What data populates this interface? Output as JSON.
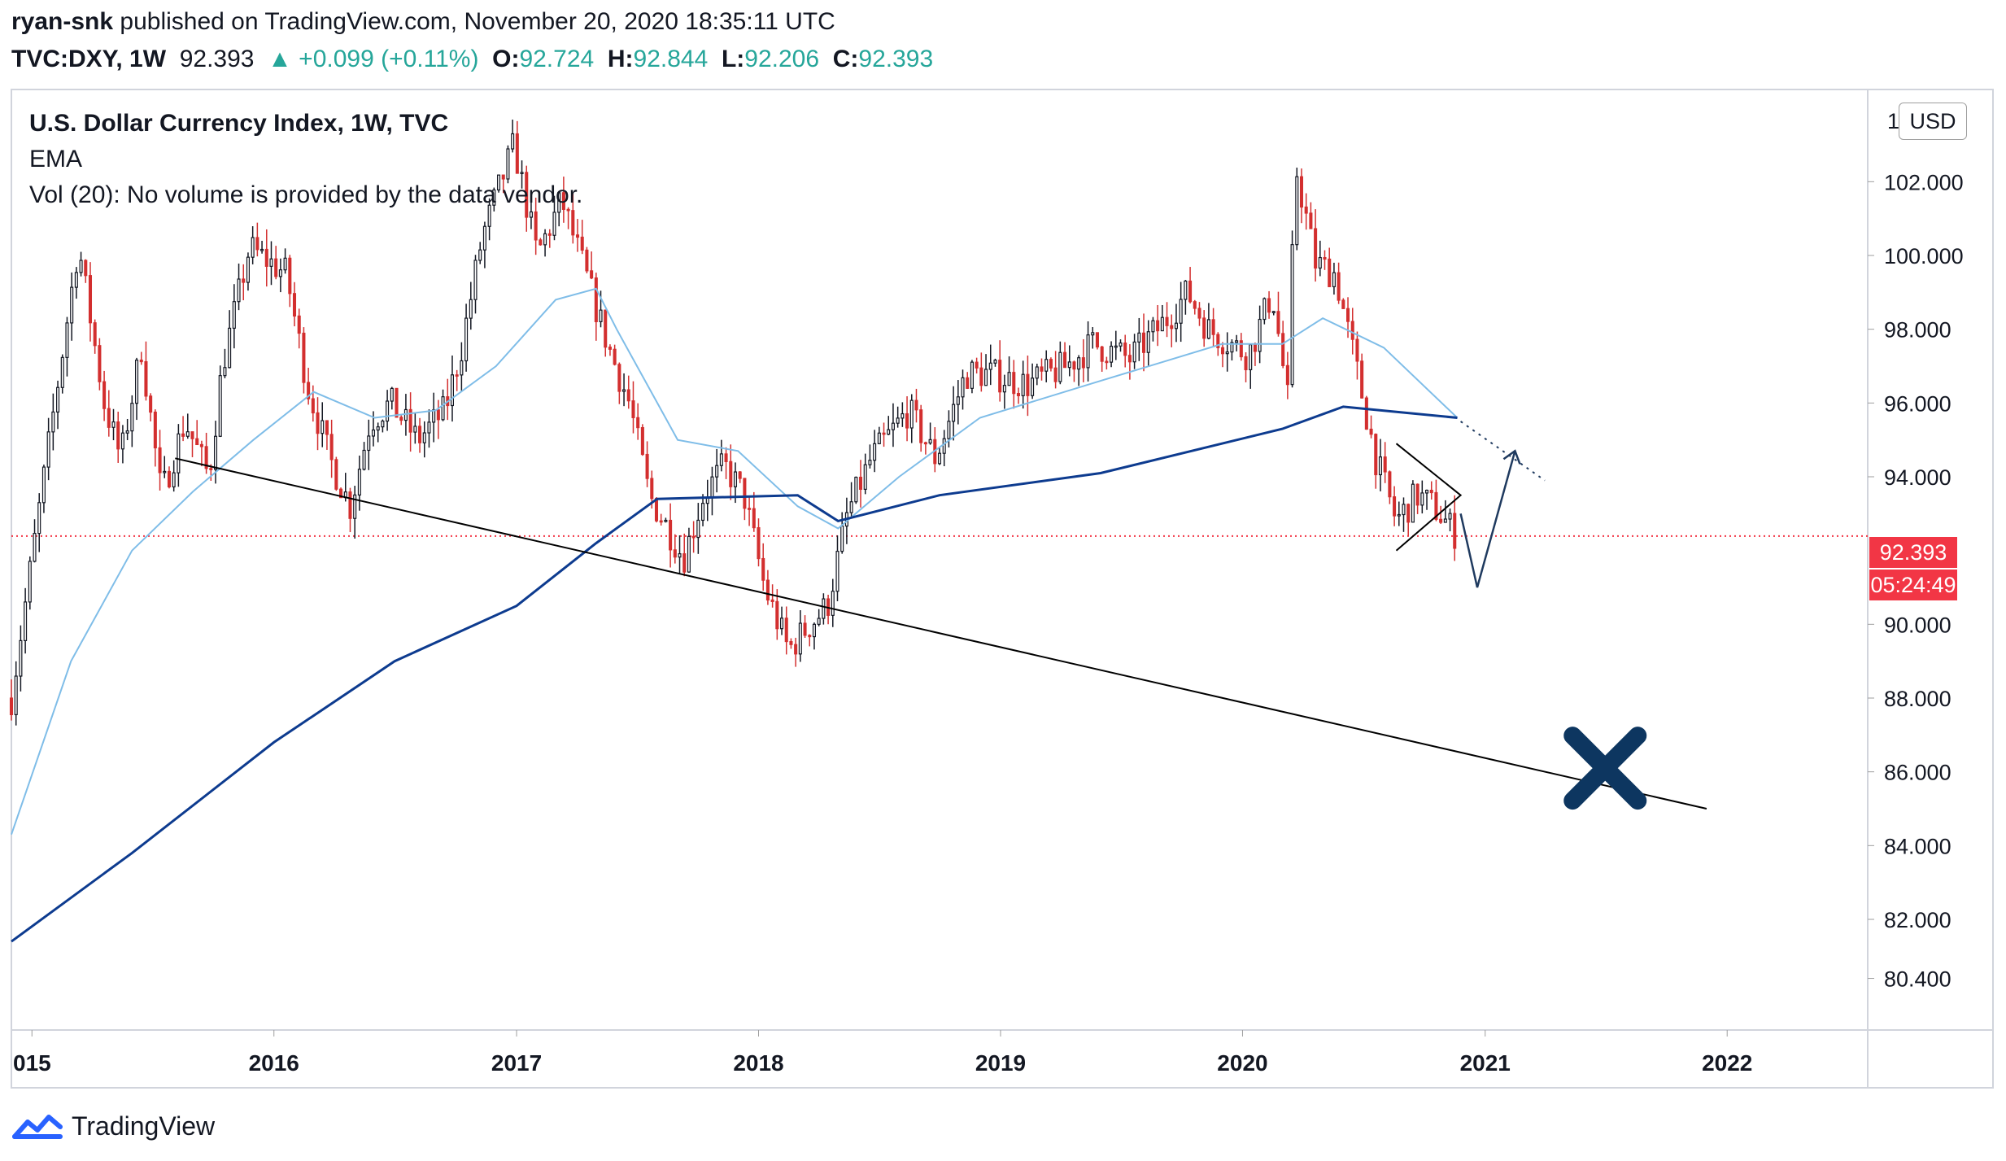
{
  "header": {
    "author": "ryan-snk",
    "published_text": " published on TradingView.com, November 20, 2020 18:35:11 UTC",
    "symbol": "TVC:DXY, 1W",
    "last": "92.393",
    "change": "▲ +0.099 (+0.11%)",
    "open_label": "O:",
    "open": "92.724",
    "high_label": "H:",
    "high": "92.844",
    "low_label": "L:",
    "low": "92.206",
    "close_label": "C:",
    "close": "92.393"
  },
  "legend": {
    "title": "U.S. Dollar Currency Index, 1W, TVC",
    "ema": "EMA",
    "vol": "Vol (20): No volume is provided by the data vendor."
  },
  "currency": "USD",
  "top_tick_partial": "1(",
  "price_label": "92.393",
  "countdown": "05:24:49",
  "brand": "TradingView",
  "colors": {
    "up": "#131722",
    "down": "#d32f2f",
    "ema_fast": "#7fbde8",
    "ema_slow": "#0d3b8f",
    "price_line": "#f23645",
    "cross": "#0d3660",
    "arrow": "#1f3a5f"
  },
  "chart_data": {
    "type": "candlestick",
    "title": "U.S. Dollar Currency Index, 1W, TVC",
    "timeframe": "1W",
    "x_axis": {
      "type": "date",
      "range": [
        "2014-12-01",
        "2022-08-01"
      ],
      "ticks": [
        "2015",
        "2016",
        "2017",
        "2018",
        "2019",
        "2020",
        "2021",
        "2022"
      ],
      "tick_dates": [
        "2015-01-01",
        "2016-01-01",
        "2017-01-01",
        "2018-01-01",
        "2019-01-01",
        "2020-01-01",
        "2021-01-01",
        "2022-01-01"
      ],
      "first_tick_label_visible": "015"
    },
    "y_axis": {
      "position": "right",
      "range": [
        79,
        104.5
      ],
      "ticks": [
        102.0,
        100.0,
        98.0,
        96.0,
        94.0,
        90.0,
        88.0,
        86.0,
        84.0,
        82.0,
        80.4
      ],
      "tick_labels": [
        "102.000",
        "100.000",
        "98.000",
        "96.000",
        "94.000",
        "90.000",
        "88.000",
        "86.000",
        "84.000",
        "82.000",
        "80.400"
      ]
    },
    "ohlc_path": [
      [
        "2014-12-01",
        88.0
      ],
      [
        "2015-01-15",
        93.5
      ],
      [
        "2015-03-12",
        100.3
      ],
      [
        "2015-04-20",
        96.0
      ],
      [
        "2015-05-15",
        94.5
      ],
      [
        "2015-06-15",
        97.5
      ],
      [
        "2015-07-15",
        93.5
      ],
      [
        "2015-08-20",
        95.5
      ],
      [
        "2015-09-25",
        94.0
      ],
      [
        "2015-10-15",
        97.0
      ],
      [
        "2015-11-25",
        100.2
      ],
      [
        "2016-01-20",
        99.5
      ],
      [
        "2016-02-20",
        96.5
      ],
      [
        "2016-03-25",
        94.5
      ],
      [
        "2016-04-25",
        93.2
      ],
      [
        "2016-05-25",
        95.5
      ],
      [
        "2016-06-25",
        96.0
      ],
      [
        "2016-08-05",
        95.0
      ],
      [
        "2016-09-15",
        95.8
      ],
      [
        "2016-10-10",
        97.5
      ],
      [
        "2016-11-10",
        100.5
      ],
      [
        "2016-12-28",
        103.0
      ],
      [
        "2017-02-01",
        100.0
      ],
      [
        "2017-03-10",
        101.5
      ],
      [
        "2017-04-15",
        99.5
      ],
      [
        "2017-05-20",
        97.5
      ],
      [
        "2017-06-20",
        96.0
      ],
      [
        "2017-07-20",
        93.5
      ],
      [
        "2017-08-20",
        92.5
      ],
      [
        "2017-09-10",
        91.8
      ],
      [
        "2017-10-10",
        93.5
      ],
      [
        "2017-11-10",
        94.3
      ],
      [
        "2017-12-10",
        93.5
      ],
      [
        "2018-01-10",
        91.0
      ],
      [
        "2018-02-15",
        89.3
      ],
      [
        "2018-03-10",
        89.8
      ],
      [
        "2018-04-15",
        90.5
      ],
      [
        "2018-05-15",
        93.0
      ],
      [
        "2018-06-20",
        94.5
      ],
      [
        "2018-08-15",
        95.8
      ],
      [
        "2018-09-25",
        94.5
      ],
      [
        "2018-11-10",
        96.8
      ],
      [
        "2018-12-15",
        96.8
      ],
      [
        "2019-02-10",
        96.5
      ],
      [
        "2019-04-10",
        97.0
      ],
      [
        "2019-05-20",
        97.6
      ],
      [
        "2019-07-15",
        97.2
      ],
      [
        "2019-09-10",
        98.3
      ],
      [
        "2019-10-10",
        99.0
      ],
      [
        "2019-11-10",
        98.0
      ],
      [
        "2020-01-10",
        97.3
      ],
      [
        "2020-02-15",
        99.0
      ],
      [
        "2020-03-10",
        96.0
      ],
      [
        "2020-03-20",
        102.5
      ],
      [
        "2020-04-20",
        99.8
      ],
      [
        "2020-05-20",
        99.5
      ],
      [
        "2020-06-20",
        97.0
      ],
      [
        "2020-07-20",
        94.5
      ],
      [
        "2020-08-20",
        92.8
      ],
      [
        "2020-09-20",
        93.5
      ],
      [
        "2020-10-15",
        93.2
      ],
      [
        "2020-11-20",
        92.39
      ]
    ],
    "series": [
      {
        "name": "EMA fast",
        "color": "#7fbde8",
        "points": [
          [
            "2014-12-01",
            84.3
          ],
          [
            "2015-03-01",
            89.0
          ],
          [
            "2015-06-01",
            92.0
          ],
          [
            "2015-09-01",
            93.6
          ],
          [
            "2015-12-01",
            95.0
          ],
          [
            "2016-03-01",
            96.3
          ],
          [
            "2016-06-01",
            95.6
          ],
          [
            "2016-09-01",
            95.8
          ],
          [
            "2016-12-01",
            97.0
          ],
          [
            "2017-03-01",
            98.8
          ],
          [
            "2017-05-01",
            99.1
          ],
          [
            "2017-06-01",
            98.0
          ],
          [
            "2017-09-01",
            95.0
          ],
          [
            "2017-12-01",
            94.7
          ],
          [
            "2018-03-01",
            93.2
          ],
          [
            "2018-05-01",
            92.6
          ],
          [
            "2018-08-01",
            94.0
          ],
          [
            "2018-12-01",
            95.6
          ],
          [
            "2019-06-01",
            96.6
          ],
          [
            "2019-12-01",
            97.6
          ],
          [
            "2020-03-01",
            97.6
          ],
          [
            "2020-05-01",
            98.3
          ],
          [
            "2020-08-01",
            97.5
          ],
          [
            "2020-11-20",
            95.6
          ]
        ]
      },
      {
        "name": "EMA slow",
        "color": "#0d3b8f",
        "points": [
          [
            "2014-12-01",
            81.4
          ],
          [
            "2015-06-01",
            83.8
          ],
          [
            "2016-01-01",
            86.8
          ],
          [
            "2016-07-01",
            89.0
          ],
          [
            "2017-01-01",
            90.5
          ],
          [
            "2017-05-01",
            92.2
          ],
          [
            "2017-08-01",
            93.4
          ],
          [
            "2018-03-01",
            93.5
          ],
          [
            "2018-05-01",
            92.8
          ],
          [
            "2018-10-01",
            93.5
          ],
          [
            "2019-06-01",
            94.1
          ],
          [
            "2020-03-01",
            95.3
          ],
          [
            "2020-06-01",
            95.9
          ],
          [
            "2020-11-20",
            95.6
          ]
        ]
      }
    ],
    "annotations": {
      "trendline": [
        [
          "2015-08-05",
          94.5
        ],
        [
          "2021-12-01",
          85.0
        ]
      ],
      "dotted_line": [
        [
          "2020-11-25",
          95.5
        ],
        [
          "2021-04-01",
          93.9
        ]
      ],
      "triangle": [
        [
          "2020-08-20",
          94.9
        ],
        [
          "2020-11-25",
          93.5
        ],
        [
          "2020-08-20",
          92.0
        ]
      ],
      "projected_path": [
        [
          "2020-11-25",
          93.0
        ],
        [
          "2020-12-20",
          91.0
        ],
        [
          "2021-02-15",
          94.7
        ]
      ],
      "cross_marker": [
        "2021-07-01",
        86.1
      ],
      "last_price": 92.393
    }
  }
}
